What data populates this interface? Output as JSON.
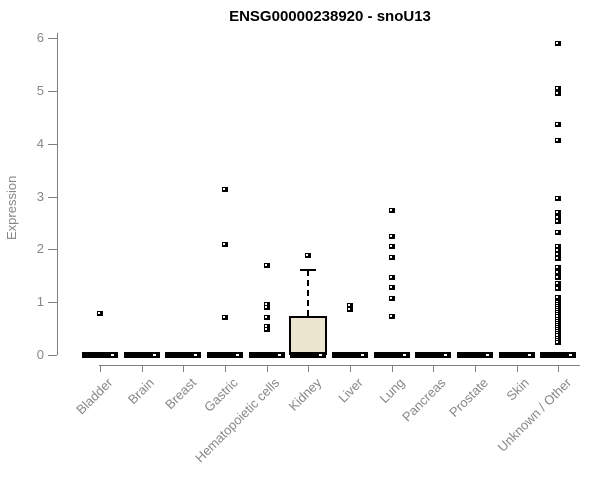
{
  "chart_data": {
    "type": "boxplot",
    "title": "ENSG00000238920 - snoU13",
    "ylabel": "Expression",
    "xlabel": "",
    "ylim": [
      0,
      6
    ],
    "yticks": [
      0,
      1,
      2,
      3,
      4,
      5,
      6
    ],
    "grid": false,
    "legend": "none",
    "categories": [
      "Bladder",
      "Brain",
      "Breast",
      "Gastric",
      "Hematopoietic cells",
      "Kidney",
      "Liver",
      "Lung",
      "Pancreas",
      "Prostate",
      "Skin",
      "Unknown / Other"
    ],
    "series": [
      {
        "category": "Bladder",
        "median": 0,
        "q1": 0,
        "q3": 0,
        "outliers": [
          0.79
        ]
      },
      {
        "category": "Brain",
        "median": 0,
        "q1": 0,
        "q3": 0,
        "outliers": []
      },
      {
        "category": "Breast",
        "median": 0,
        "q1": 0,
        "q3": 0,
        "outliers": []
      },
      {
        "category": "Gastric",
        "median": 0,
        "q1": 0,
        "q3": 0,
        "outliers": [
          3.14,
          2.1,
          0.72
        ]
      },
      {
        "category": "Hematopoietic cells",
        "median": 0,
        "q1": 0,
        "q3": 0,
        "outliers": [
          1.7,
          0.97,
          0.91,
          0.72,
          0.55,
          0.49
        ]
      },
      {
        "category": "Kidney",
        "median": 0,
        "q1": 0,
        "q3": 0.74,
        "whisker_high": 1.61,
        "outliers": [
          1.89
        ]
      },
      {
        "category": "Liver",
        "median": 0,
        "q1": 0,
        "q3": 0,
        "outliers": [
          0.95,
          0.87
        ]
      },
      {
        "category": "Lung",
        "median": 0,
        "q1": 0,
        "q3": 0,
        "outliers": [
          2.74,
          2.25,
          2.06,
          1.85,
          1.48,
          1.29,
          1.08,
          0.74
        ]
      },
      {
        "category": "Pancreas",
        "median": 0,
        "q1": 0,
        "q3": 0,
        "outliers": []
      },
      {
        "category": "Prostate",
        "median": 0,
        "q1": 0,
        "q3": 0,
        "outliers": []
      },
      {
        "category": "Skin",
        "median": 0,
        "q1": 0,
        "q3": 0,
        "outliers": []
      },
      {
        "category": "Unknown / Other",
        "median": 0,
        "q1": 0,
        "q3": 0,
        "outliers": [
          5.91,
          5.05,
          4.96,
          4.37,
          4.07,
          2.97,
          2.7,
          2.61,
          2.54,
          2.33,
          2.07,
          1.99,
          1.91,
          1.83,
          1.66,
          1.58,
          1.48,
          1.36,
          1.27,
          1.1,
          1.01,
          0.97,
          0.93,
          0.89,
          0.85,
          0.81,
          0.77,
          0.73,
          0.69,
          0.65,
          0.61,
          0.57,
          0.53,
          0.49,
          0.45,
          0.41,
          0.37,
          0.33,
          0.29,
          0.25
        ]
      }
    ],
    "colors": {
      "box_fill": "#ece6d0",
      "box_border": "#000000",
      "median": "#000000",
      "outlier": "#000000",
      "axis": "#808080",
      "tick_text": "#878787",
      "title_text": "#000000"
    }
  }
}
